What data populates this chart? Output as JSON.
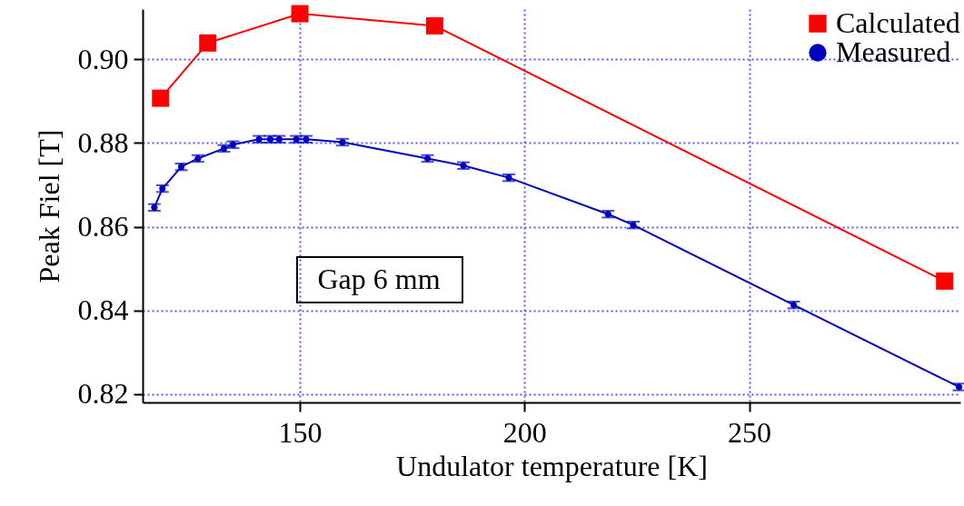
{
  "chart_data": {
    "type": "line",
    "xlabel": "Undulator temperature [K]",
    "ylabel": "Peak Fiel [T]",
    "xlim": [
      115,
      297
    ],
    "ylim": [
      0.818,
      0.912
    ],
    "xticks": [
      150,
      200,
      250
    ],
    "yticks": [
      {
        "value": 0.82,
        "label": "0.82"
      },
      {
        "value": 0.84,
        "label": "0.84"
      },
      {
        "value": 0.86,
        "label": "0.86"
      },
      {
        "value": 0.88,
        "label": "0.88"
      },
      {
        "value": 0.9,
        "label": "0.90"
      }
    ],
    "grid": true,
    "legend": "top right",
    "line_style": "solid",
    "annotations": [
      "Gap 6 mm"
    ],
    "series": [
      {
        "name": "Calculated",
        "color": "#ff0000",
        "marker": "square",
        "x": [
          119,
          129.5,
          150,
          180,
          293.5
        ],
        "values": [
          0.8907,
          0.9039,
          0.9109,
          0.908,
          0.847
        ]
      },
      {
        "name": "Measured",
        "color": "#0000c0",
        "marker": "circle",
        "x": [
          117.6,
          119.4,
          123.6,
          127.3,
          133.1,
          135.1,
          140.9,
          143.4,
          145.4,
          149.2,
          151.4,
          159.5,
          178.4,
          186.4,
          196.5,
          218.6,
          224.2,
          259.9,
          296.7
        ],
        "values": [
          0.8646,
          0.8691,
          0.8743,
          0.8763,
          0.8787,
          0.8796,
          0.8809,
          0.8809,
          0.8809,
          0.8809,
          0.8809,
          0.8802,
          0.8763,
          0.8746,
          0.8717,
          0.863,
          0.8604,
          0.8413,
          0.8217
        ],
        "errors": [
          0.0008,
          0.0008,
          0.0008,
          0.0008,
          0.0008,
          0.0008,
          0.0008,
          0.0008,
          0.0008,
          0.0008,
          0.0008,
          0.0008,
          0.0008,
          0.0008,
          0.0008,
          0.0008,
          0.0008,
          0.0008,
          0.0008
        ]
      }
    ]
  }
}
